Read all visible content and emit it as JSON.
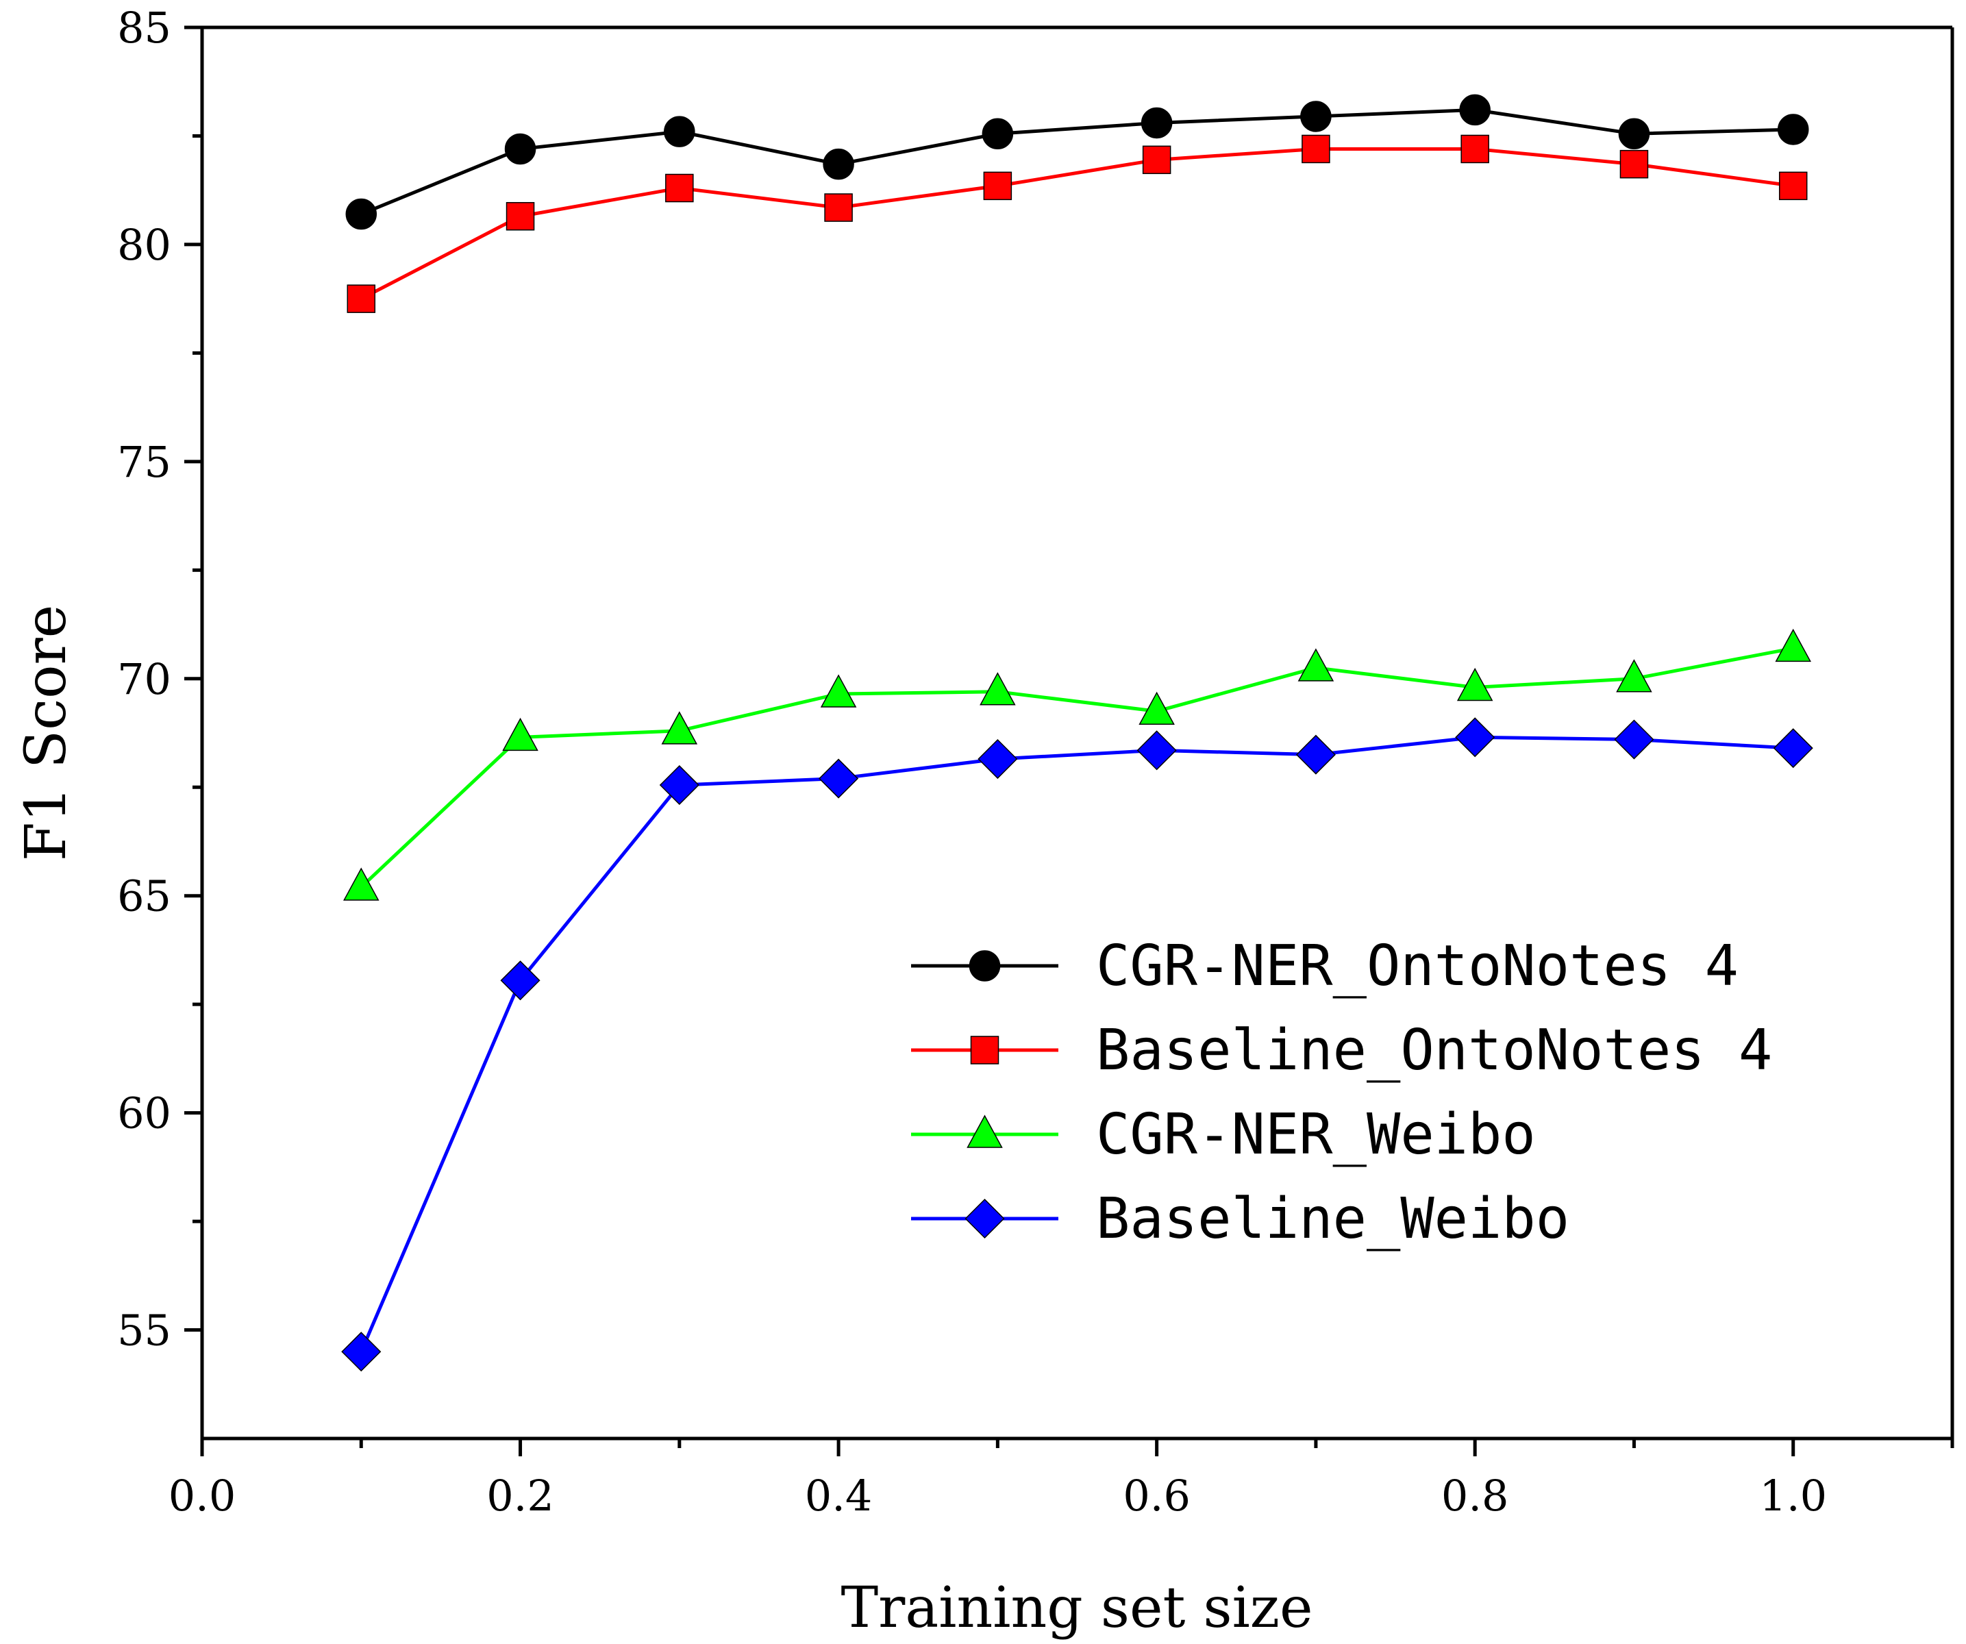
{
  "chart_data": {
    "type": "line",
    "title": "",
    "xlabel": "Training set size",
    "ylabel": "F1 Score",
    "xlim": [
      0.0,
      1.1
    ],
    "ylim": [
      52.5,
      85
    ],
    "x_ticks": [
      0.0,
      0.2,
      0.4,
      0.6,
      0.8,
      1.0
    ],
    "x_tick_labels": [
      "0.0",
      "0.2",
      "0.4",
      "0.6",
      "0.8",
      "1.0"
    ],
    "y_ticks": [
      55,
      60,
      65,
      70,
      75,
      80,
      85
    ],
    "y_tick_labels": [
      "55",
      "60",
      "65",
      "70",
      "75",
      "80",
      "85"
    ],
    "grid": false,
    "legend_position": "center-right",
    "x": [
      0.1,
      0.2,
      0.3,
      0.4,
      0.5,
      0.6,
      0.7,
      0.8,
      0.9,
      1.0
    ],
    "series": [
      {
        "name": "CGR-NER_OntoNotes 4",
        "color": "#000000",
        "marker": "circle",
        "values": [
          80.7,
          82.2,
          82.6,
          81.85,
          82.55,
          82.8,
          82.95,
          83.1,
          82.55,
          82.65
        ]
      },
      {
        "name": "Baseline_OntoNotes 4",
        "color": "#ff0000",
        "marker": "square",
        "values": [
          78.75,
          80.65,
          81.3,
          80.85,
          81.35,
          81.95,
          82.2,
          82.2,
          81.85,
          81.35
        ]
      },
      {
        "name": "CGR-NER_Weibo",
        "color": "#00ff00",
        "marker": "triangle",
        "values": [
          65.2,
          68.65,
          68.8,
          69.65,
          69.7,
          69.25,
          70.25,
          69.8,
          70.0,
          70.7
        ]
      },
      {
        "name": "Baseline_Weibo",
        "color": "#0000ff",
        "marker": "diamond",
        "values": [
          54.5,
          63.05,
          67.55,
          67.7,
          68.15,
          68.35,
          68.25,
          68.65,
          68.6,
          68.4
        ]
      }
    ]
  }
}
